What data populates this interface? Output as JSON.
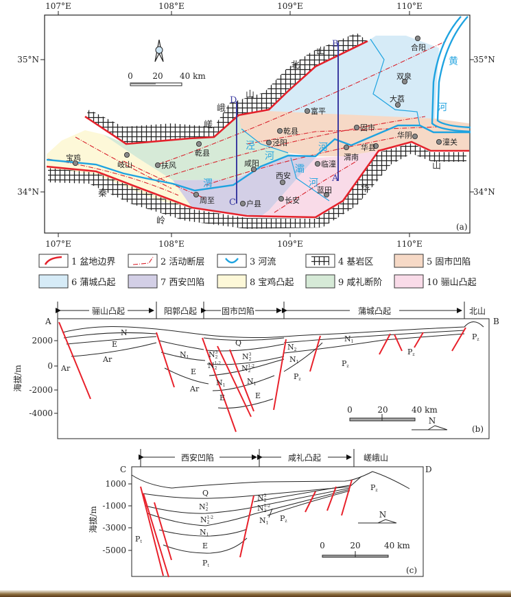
{
  "map": {
    "panel_label": "(a)",
    "lon_labels": [
      "107°E",
      "108°E",
      "109°E",
      "110°E"
    ],
    "lat_labels": [
      "35°N",
      "34°N"
    ],
    "scale": {
      "zero": "0",
      "mid": "20",
      "end": "40 km"
    },
    "geo_labels": {
      "beishan_1": "北",
      "beishan_2": "山",
      "cuoe_1": "嵯",
      "cuoe_2": "峨",
      "cuoe_3": "山",
      "qinling_1": "秦",
      "qinling_2": "岭",
      "huashan_1": "华",
      "huashan_2": "山"
    },
    "river_labels": {
      "huang": "黄",
      "huanghe": "河",
      "jing": "泾",
      "jinghe": "河",
      "wei": "渭",
      "weihe": "河",
      "ba": "灞",
      "bahe": "河"
    },
    "section_ends": {
      "A": "A",
      "B": "B",
      "C": "C",
      "D": "D"
    },
    "cities": [
      "宝鸡",
      "岐山",
      "扶风",
      "乾县",
      "咸阳",
      "泾阳",
      "乾县",
      "富平",
      "固市",
      "渭南",
      "华县",
      "华阴",
      "潼关",
      "临潼",
      "西安",
      "蓝田",
      "长安",
      "户县",
      "周至",
      "大荔",
      "双泉",
      "合阳"
    ]
  },
  "legend": [
    {
      "label": "1 盆地边界",
      "icon": "basin-boundary"
    },
    {
      "label": "2 活动断层",
      "icon": "active-fault"
    },
    {
      "label": "3 河流",
      "icon": "river"
    },
    {
      "label": "4 基岩区",
      "icon": "bedrock"
    },
    {
      "label": "5 固市凹陷",
      "color": "#f6d9c6"
    },
    {
      "label": "6 蒲城凸起",
      "color": "#d6ebf7"
    },
    {
      "label": "7 西安凹陷",
      "color": "#d3cfe6"
    },
    {
      "label": "8 宝鸡凸起",
      "color": "#fdf8d8"
    },
    {
      "label": "9 咸礼断阶",
      "color": "#d6ead7"
    },
    {
      "label": "10 骊山凸起",
      "color": "#f9dbe8"
    }
  ],
  "section_b": {
    "panel_label": "(b)",
    "start": "A",
    "end": "B",
    "ylabel": "海拔/m",
    "yticks": [
      "2000",
      "0",
      "-2000",
      "-4000"
    ],
    "units": [
      "骊山凸起",
      "阳郭凸起",
      "固市凹陷",
      "蒲城凸起",
      "北山"
    ],
    "strata": [
      {
        "base": "N",
        "sub": "",
        "sup": ""
      },
      {
        "base": "E",
        "sub": "",
        "sup": ""
      },
      {
        "base": "Ar",
        "sub": "",
        "sup": ""
      },
      {
        "base": "Ar",
        "sub": "",
        "sup": ""
      },
      {
        "base": "N",
        "sub": "1",
        "sup": ""
      },
      {
        "base": "E",
        "sub": "",
        "sup": ""
      },
      {
        "base": "Ar",
        "sub": "",
        "sup": ""
      },
      {
        "base": "Q",
        "sub": "",
        "sup": ""
      },
      {
        "base": "N",
        "sub": "2",
        "sup": "3"
      },
      {
        "base": "N",
        "sub": "2",
        "sup": "1-2"
      },
      {
        "base": "N",
        "sub": "2",
        "sup": "3"
      },
      {
        "base": "N",
        "sub": "2",
        "sup": "1-2"
      },
      {
        "base": "N",
        "sub": "1",
        "sup": ""
      },
      {
        "base": "N",
        "sub": "1",
        "sup": ""
      },
      {
        "base": "E",
        "sub": "",
        "sup": ""
      },
      {
        "base": "E",
        "sub": "",
        "sup": ""
      },
      {
        "base": "N",
        "sub": "2",
        "sup": ""
      },
      {
        "base": "N",
        "sub": "1",
        "sup": ""
      },
      {
        "base": "P",
        "sub": "z",
        "sup": ""
      },
      {
        "base": "N",
        "sub": "1",
        "sup": ""
      },
      {
        "base": "P",
        "sub": "z",
        "sup": ""
      },
      {
        "base": "P",
        "sub": "z",
        "sup": ""
      },
      {
        "base": "P",
        "sub": "z",
        "sup": ""
      }
    ],
    "north": "N",
    "scale": {
      "zero": "0",
      "mid": "20",
      "end": "40 km"
    }
  },
  "section_c": {
    "panel_label": "(c)",
    "start": "C",
    "end": "D",
    "ylabel": "海拔/m",
    "yticks": [
      "1000",
      "-1000",
      "-3000",
      "-5000"
    ],
    "units": [
      "西安凹陷",
      "咸礼凸起",
      "嵯峨山"
    ],
    "strata": [
      {
        "base": "Q",
        "sub": "",
        "sup": ""
      },
      {
        "base": "N",
        "sub": "2",
        "sup": "3"
      },
      {
        "base": "N",
        "sub": "2",
        "sup": "1-2"
      },
      {
        "base": "N",
        "sub": "1",
        "sup": ""
      },
      {
        "base": "E",
        "sub": "",
        "sup": ""
      },
      {
        "base": "P",
        "sub": "t",
        "sup": ""
      },
      {
        "base": "P",
        "sub": "t",
        "sup": ""
      },
      {
        "base": "N",
        "sub": "2",
        "sup": "3"
      },
      {
        "base": "N",
        "sub": "2",
        "sup": "1-2"
      },
      {
        "base": "N",
        "sub": "1",
        "sup": ""
      },
      {
        "base": "P",
        "sub": "z",
        "sup": ""
      },
      {
        "base": "P",
        "sub": "z",
        "sup": ""
      }
    ],
    "north": "N",
    "scale": {
      "zero": "0",
      "mid": "20",
      "end": "40 km"
    }
  }
}
